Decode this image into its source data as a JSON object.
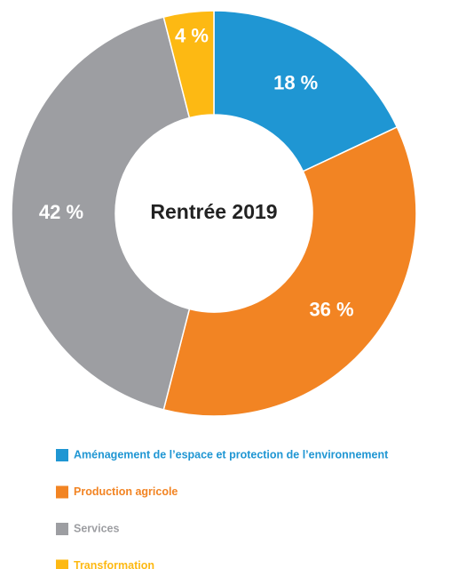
{
  "chart_data": {
    "type": "donut",
    "title": "Rentrée 2019",
    "categories": [
      "Aménagement de l’espace et protection de l’environnement",
      "Production agricole",
      "Services",
      "Transformation"
    ],
    "values": [
      18,
      36,
      42,
      4
    ],
    "value_labels": [
      "18 %",
      "36 %",
      "42 %",
      "4 %"
    ],
    "colors": [
      "#1f96d3",
      "#f28423",
      "#9d9ea2",
      "#fdb913"
    ]
  }
}
